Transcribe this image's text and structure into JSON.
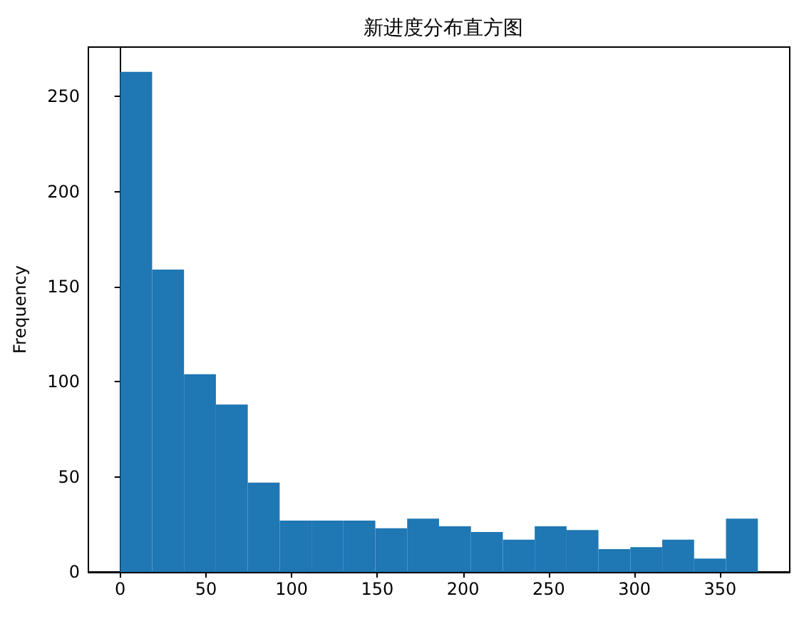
{
  "chart_data": {
    "type": "histogram",
    "title": "新进度分布直方图",
    "ylabel": "Frequency",
    "bins": [
      0,
      18.6,
      37.2,
      55.8,
      74.4,
      93,
      111.6,
      130.2,
      148.8,
      167.4,
      186,
      204.6,
      223.2,
      241.8,
      260.4,
      279,
      297.6,
      316.2,
      334.8,
      353.4,
      372
    ],
    "values": [
      263,
      159,
      104,
      88,
      47,
      27,
      27,
      27,
      23,
      28,
      24,
      21,
      17,
      24,
      22,
      12,
      13,
      17,
      7,
      28
    ],
    "color": "#1f77b4",
    "xlim": [
      -18.6,
      390.6
    ],
    "xticks": [
      0,
      50,
      100,
      150,
      200,
      250,
      300,
      350
    ],
    "ylim": [
      0,
      276
    ],
    "yticks": [
      0,
      50,
      100,
      150,
      200,
      250
    ]
  }
}
